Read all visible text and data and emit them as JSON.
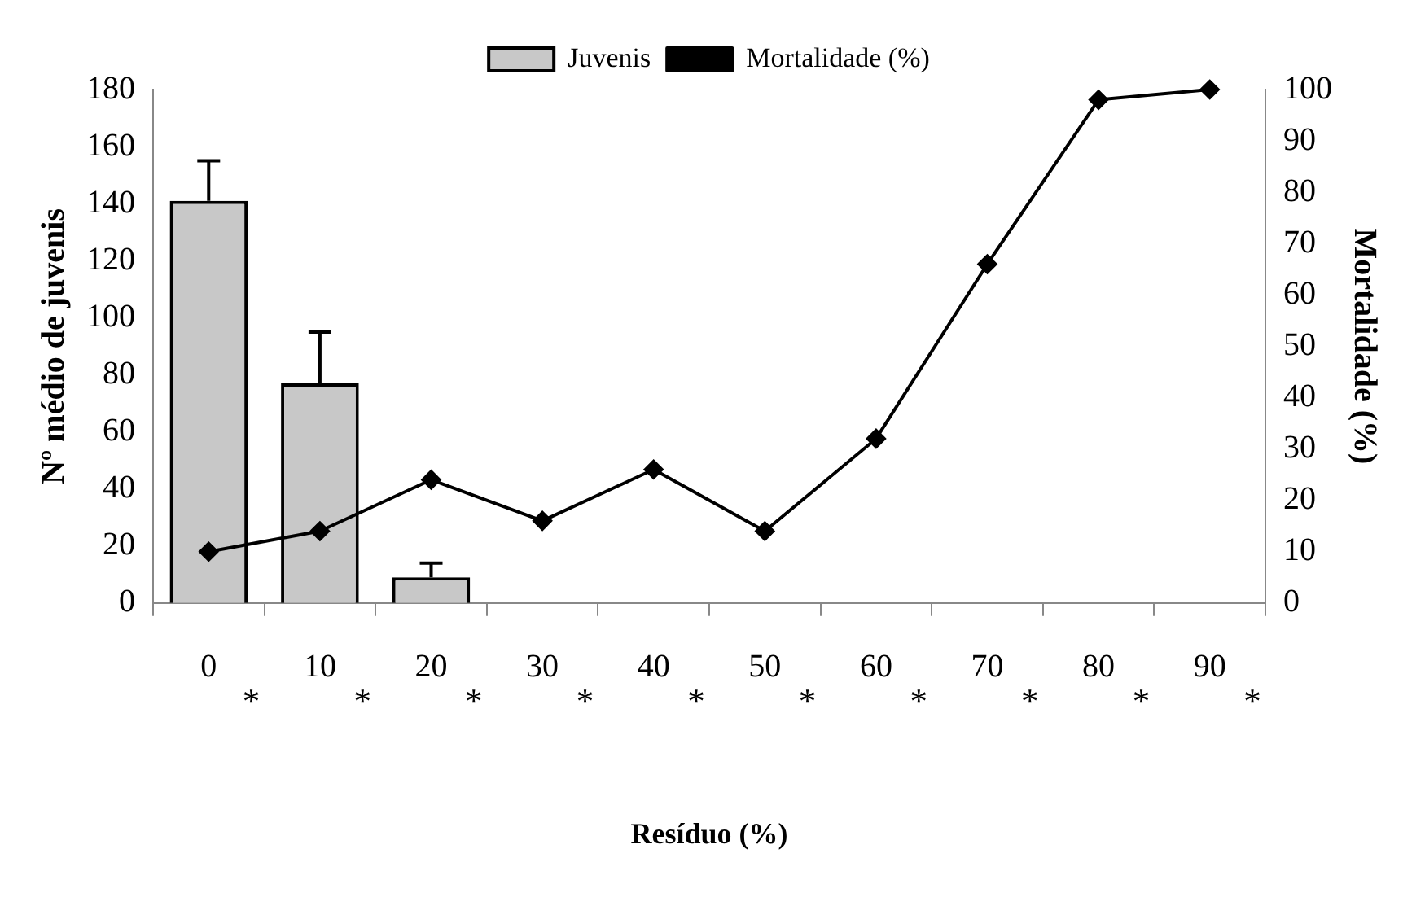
{
  "chart_data": {
    "type": "bar",
    "xlabel": "Resíduo (%)",
    "ylabel": "Nº médio de juvenis",
    "y2label": "Mortalidade (%)",
    "categories": [
      "0",
      "10",
      "20",
      "30",
      "40",
      "50",
      "60",
      "70",
      "80",
      "90"
    ],
    "series": [
      {
        "name": "Juvenis",
        "color": "#c8c8c8",
        "values": [
          141,
          77,
          9,
          0,
          0,
          0,
          0,
          0,
          0,
          0
        ],
        "errors": [
          [
            141,
            155
          ],
          [
            77,
            95
          ],
          [
            9,
            14
          ],
          null,
          null,
          null,
          null,
          null,
          null,
          null
        ]
      },
      {
        "name": "Mortalidade (%)",
        "type": "line",
        "axis": "y2",
        "color": "#000000",
        "marker": "diamond",
        "values": [
          10,
          14,
          24,
          16,
          26,
          14,
          32,
          66,
          98,
          100
        ]
      }
    ],
    "ylim": [
      0,
      180
    ],
    "yticks": [
      0,
      20,
      40,
      60,
      80,
      100,
      120,
      140,
      160,
      180
    ],
    "y2lim": [
      0,
      100
    ],
    "y2ticks": [
      0,
      10,
      20,
      30,
      40,
      50,
      60,
      70,
      80,
      90,
      100
    ],
    "grid": false,
    "legend": "top",
    "annotations": [
      "*",
      "*",
      "*",
      "*",
      "*",
      "*",
      "*",
      "*",
      "*",
      "*"
    ]
  }
}
